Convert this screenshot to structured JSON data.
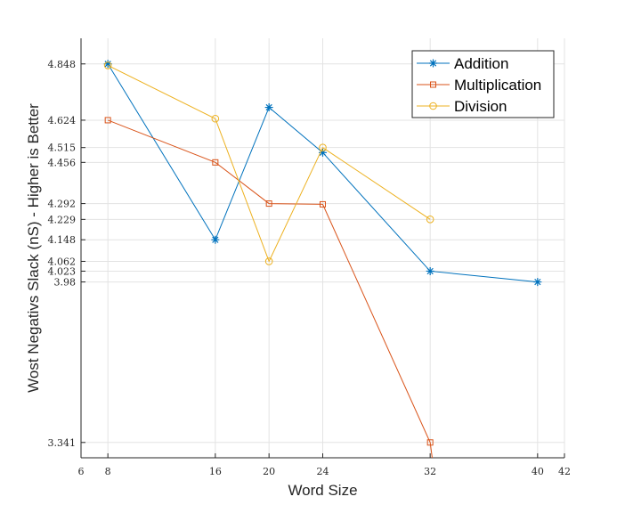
{
  "chart_data": {
    "type": "line",
    "xlabel": "Word Size",
    "ylabel": "Wost Negativs Slack (nS) - Higher is Better",
    "xlim": [
      6,
      42
    ],
    "ylim": [
      3.28,
      4.95
    ],
    "xticks": [
      6,
      8,
      16,
      20,
      24,
      32,
      40,
      42
    ],
    "yticks": [
      3.341,
      3.98,
      4.023,
      4.062,
      4.148,
      4.229,
      4.292,
      4.456,
      4.515,
      4.624,
      4.848
    ],
    "xtick_labels": [
      "6",
      "8",
      "16",
      "20",
      "24",
      "32",
      "40",
      "42"
    ],
    "ytick_labels": [
      "3.341",
      "3.98",
      "4.023",
      "4.062",
      "4.148",
      "4.229",
      "4.292",
      "4.456",
      "4.515",
      "4.624",
      "4.848"
    ],
    "grid": true,
    "legend_position": "top-right",
    "series": [
      {
        "name": "Addition",
        "color": "#0072BD",
        "marker": "asterisk",
        "x": [
          8,
          16,
          20,
          24,
          32,
          40
        ],
        "y": [
          4.848,
          4.148,
          4.675,
          4.495,
          4.023,
          3.98
        ]
      },
      {
        "name": "Multiplication",
        "color": "#D95319",
        "marker": "square",
        "x": [
          8,
          16,
          20,
          24,
          32,
          32.3
        ],
        "y": [
          4.624,
          4.456,
          4.292,
          4.289,
          3.341,
          3.22
        ]
      },
      {
        "name": "Division",
        "color": "#EDB120",
        "marker": "circle",
        "x": [
          8,
          16,
          20,
          24,
          32
        ],
        "y": [
          4.842,
          4.63,
          4.062,
          4.515,
          4.229
        ]
      }
    ]
  }
}
